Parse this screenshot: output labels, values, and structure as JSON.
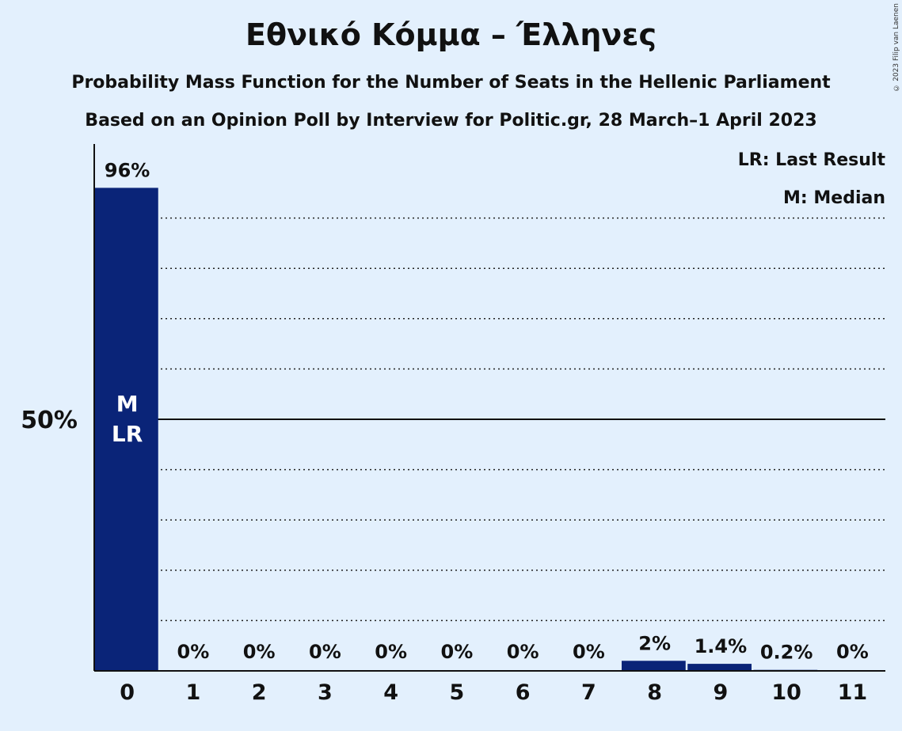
{
  "title": "Εθνικό Κόμμα – Έλληνες",
  "subtitle": "Probability Mass Function for the Number of Seats in the Hellenic Parliament",
  "subtitle2": "Based on an Opinion Poll by Interview for Politic.gr, 28 March–1 April 2023",
  "copyright": "© 2023 Filip van Laenen",
  "legend": {
    "last_result": "LR: Last Result",
    "median": "M: Median"
  },
  "colors": {
    "bar": "#0a2478",
    "background": "#e3f0fd"
  },
  "chart_data": {
    "type": "bar",
    "categories": [
      "0",
      "1",
      "2",
      "3",
      "4",
      "5",
      "6",
      "7",
      "8",
      "9",
      "10",
      "11"
    ],
    "values": [
      96,
      0,
      0,
      0,
      0,
      0,
      0,
      0,
      2,
      1.4,
      0.2,
      0
    ],
    "data_labels": [
      "96%",
      "0%",
      "0%",
      "0%",
      "0%",
      "0%",
      "0%",
      "0%",
      "2%",
      "1.4%",
      "0.2%",
      "0%"
    ],
    "ylim": [
      0,
      100
    ],
    "yticks": [
      {
        "value": 50,
        "label": "50%"
      }
    ],
    "gridlines": [
      10,
      20,
      30,
      40,
      60,
      70,
      80,
      90
    ],
    "median_index": 0,
    "last_result_index": 0,
    "median_marker": "M",
    "last_result_marker": "LR"
  }
}
